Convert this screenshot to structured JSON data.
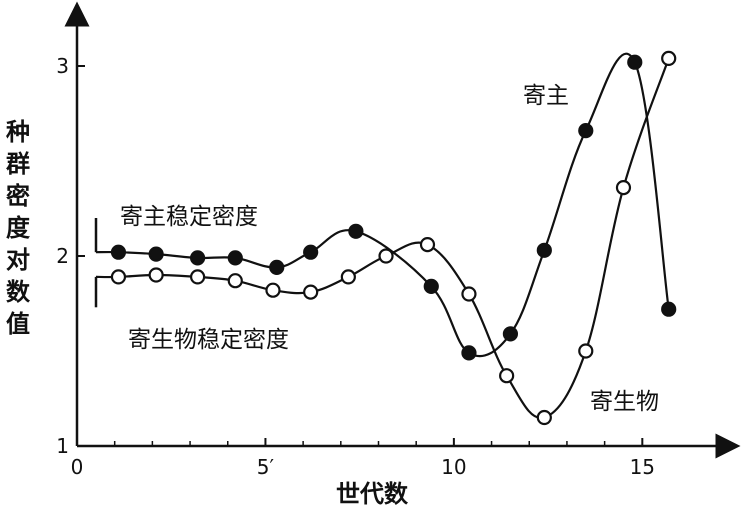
{
  "chart_data": {
    "type": "line",
    "xlabel": "世代数",
    "ylabel": "种群密度对数值",
    "xlim": [
      0,
      16
    ],
    "ylim": [
      1,
      3
    ],
    "xticks": [
      {
        "value": 0,
        "label": "0"
      },
      {
        "value": 5,
        "label": "5′"
      },
      {
        "value": 10,
        "label": "10"
      },
      {
        "value": 15,
        "label": "15"
      }
    ],
    "yticks": [
      {
        "value": 1,
        "label": "1"
      },
      {
        "value": 2,
        "label": "2"
      },
      {
        "value": 3,
        "label": "3"
      }
    ],
    "series": [
      {
        "name": "寄主",
        "marker": "filled-circle",
        "color": "#111111",
        "x": [
          1.1,
          2.1,
          3.2,
          4.2,
          5.3,
          6.2,
          7.4,
          9.4,
          10.4,
          11.5,
          12.4,
          13.5,
          14.8,
          15.7
        ],
        "y": [
          2.02,
          2.01,
          1.99,
          1.99,
          1.94,
          2.02,
          2.13,
          1.84,
          1.49,
          1.59,
          2.03,
          2.66,
          3.02,
          1.72
        ]
      },
      {
        "name": "寄生物",
        "marker": "open-circle",
        "color": "#111111",
        "x": [
          1.1,
          2.1,
          3.2,
          4.2,
          5.2,
          6.2,
          7.2,
          8.2,
          9.3,
          10.4,
          11.4,
          12.4,
          13.5,
          14.5,
          15.7
        ],
        "y": [
          1.89,
          1.9,
          1.89,
          1.87,
          1.82,
          1.81,
          1.89,
          2.0,
          2.06,
          1.8,
          1.37,
          1.15,
          1.5,
          2.36,
          3.04
        ]
      }
    ],
    "annotations": [
      {
        "id": "host-stable-label",
        "text": "寄主稳定密度"
      },
      {
        "id": "parasite-stable-label",
        "text": "寄生物稳定密度"
      },
      {
        "id": "host-label",
        "text": "寄主"
      },
      {
        "id": "parasite-label",
        "text": "寄生物"
      }
    ],
    "grid": false
  }
}
